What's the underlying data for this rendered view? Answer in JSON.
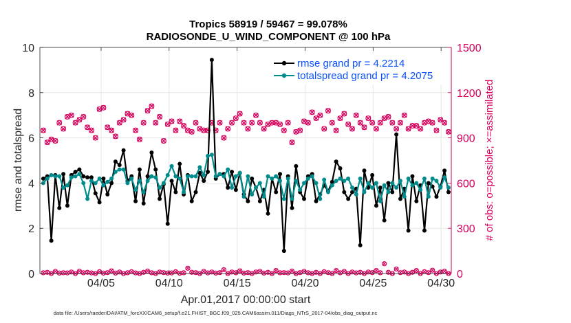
{
  "chart_data": {
    "type": "line",
    "title_line1": "Tropics 58919 / 59467 = 99.078%",
    "title_line2": "RADIOSONDE_U_WIND_COMPONENT @ 100 hPa",
    "xlabel": "Apr.01,2017 00:00:00 start",
    "ylabel_left": "rmse and totalspread",
    "ylabel_right": "# of obs: o=possible; ×=assimilated",
    "footer": "data file: /Users/raeder/DAI/ATM_forcXX/CAM6_setup/f.e21.FHIST_BGC.f09_025.CAM6assim.011/Diags_NTrS_2017-04/obs_diag_output.nc",
    "x_range": [
      0.5,
      30.75
    ],
    "x_ticks": [
      {
        "value": 5,
        "label": "04/05"
      },
      {
        "value": 10,
        "label": "04/10"
      },
      {
        "value": 15,
        "label": "04/15"
      },
      {
        "value": 20,
        "label": "04/20"
      },
      {
        "value": 25,
        "label": "04/25"
      },
      {
        "value": 30,
        "label": "04/30"
      }
    ],
    "ylim_left": [
      0,
      10
    ],
    "yticks_left": [
      "0",
      "2",
      "4",
      "6",
      "8",
      "10"
    ],
    "ylim_right": [
      0,
      1500
    ],
    "yticks_right": [
      "0",
      "300",
      "600",
      "900",
      "1200",
      "1500"
    ],
    "colors": {
      "rmse": "#000000",
      "spread": "#008c8c",
      "obs": "#d6005c",
      "legend_text": "#0a52ff"
    },
    "series": [
      {
        "name": "rmse grand pr = 4.2214",
        "axis": "left",
        "values": [
          4.2,
          4.3,
          1.45,
          4.35,
          2.9,
          4.4,
          3.0,
          4.35,
          4.5,
          4.6,
          4.3,
          4.25,
          4.25,
          3.55,
          3.15,
          4.2,
          3.5,
          4.0,
          4.95,
          4.8,
          5.45,
          4.1,
          4.3,
          3.2,
          4.6,
          3.1,
          4.3,
          5.35,
          4.6,
          3.3,
          3.95,
          2.2,
          4.1,
          3.6,
          4.85,
          3.5,
          4.35,
          3.2,
          3.6,
          4.45,
          4.1,
          4.5,
          9.45,
          4.2,
          4.4,
          4.4,
          3.8,
          4.5,
          3.7,
          4.45,
          3.5,
          3.2,
          4.2,
          3.8,
          3.2,
          3.7,
          2.65,
          4.2,
          3.6,
          4.4,
          1.0,
          4.3,
          2.9,
          4.75,
          3.6,
          3.3,
          4.3,
          4.4,
          3.2,
          3.5,
          3.9,
          3.65,
          4.05,
          4.95,
          4.65,
          3.6,
          3.3,
          3.6,
          3.75,
          1.25,
          4.55,
          3.8,
          4.35,
          3.0,
          3.8,
          2.35,
          4.0,
          3.6,
          6.15,
          3.3,
          3.75,
          1.9,
          4.3,
          3.2,
          3.9,
          1.9,
          4.0,
          3.85,
          3.4,
          3.85,
          4.55,
          3.6
        ]
      },
      {
        "name": "totalspread grand pr = 4.2075",
        "axis": "left",
        "values": [
          4.0,
          4.2,
          4.35,
          4.3,
          4.3,
          3.8,
          3.9,
          4.25,
          4.3,
          4.4,
          4.0,
          3.3,
          4.1,
          4.0,
          4.2,
          3.9,
          4.05,
          4.2,
          4.5,
          4.6,
          4.6,
          4.0,
          4.2,
          3.7,
          4.1,
          3.6,
          4.1,
          4.3,
          4.25,
          3.8,
          4.0,
          4.35,
          4.75,
          4.3,
          4.2,
          3.6,
          4.3,
          4.3,
          4.3,
          4.7,
          4.35,
          5.2,
          5.25,
          4.3,
          4.4,
          4.3,
          4.6,
          3.8,
          4.3,
          4.45,
          3.4,
          4.3,
          3.5,
          3.8,
          4.0,
          3.4,
          4.3,
          4.2,
          4.3,
          4.1,
          3.3,
          4.2,
          3.3,
          4.1,
          3.7,
          4.0,
          4.2,
          4.3,
          4.0,
          3.3,
          4.15,
          3.6,
          3.9,
          4.1,
          4.2,
          4.1,
          4.2,
          3.8,
          3.5,
          4.2,
          3.6,
          4.0,
          3.8,
          4.0,
          3.2,
          3.9,
          3.6,
          4.0,
          3.8,
          4.1,
          3.4,
          4.2,
          3.9,
          4.0,
          3.7,
          4.2,
          3.4,
          4.2,
          4.1,
          3.8,
          4.25,
          3.8
        ]
      },
      {
        "name": "obs possible",
        "axis": "right",
        "values": [
          950,
          870,
          890,
          880,
          1000,
          960,
          1040,
          1050,
          1000,
          1020,
          1040,
          970,
          950,
          900,
          1090,
          1100,
          970,
          950,
          910,
          1000,
          1020,
          1060,
          1050,
          950,
          890,
          1000,
          1080,
          1110,
          1000,
          1040,
          880,
          990,
          1010,
          950,
          1010,
          980,
          950,
          940,
          1000,
          960,
          950,
          950,
          1000,
          950,
          1000,
          900,
          960,
          1000,
          1030,
          1060,
          1000,
          960,
          1000,
          1050,
          1000,
          960,
          990,
          1000,
          1000,
          990,
          950,
          1000,
          870,
          940,
          950,
          1010,
          1000,
          1070,
          1030,
          1050,
          960,
          1080,
          1000,
          950,
          1030,
          1060,
          990,
          960,
          1050,
          1000,
          970,
          1030,
          1000,
          960,
          1000,
          1030,
          1040,
          1000,
          960,
          1000,
          1050,
          960,
          980,
          980,
          960,
          1000,
          1010,
          1000,
          950,
          1020,
          1000,
          940
        ]
      },
      {
        "name": "obs assimilated",
        "axis": "right",
        "values": [
          950,
          870,
          890,
          880,
          1000,
          960,
          1040,
          1050,
          1000,
          1020,
          1040,
          970,
          950,
          900,
          1090,
          1100,
          970,
          950,
          910,
          1000,
          1020,
          1060,
          1050,
          950,
          890,
          1000,
          1080,
          1110,
          1000,
          1040,
          880,
          990,
          1010,
          950,
          1010,
          980,
          950,
          940,
          1000,
          960,
          950,
          950,
          1000,
          950,
          1000,
          900,
          960,
          1000,
          1030,
          1060,
          1000,
          960,
          1000,
          1050,
          1000,
          960,
          990,
          1000,
          1000,
          990,
          950,
          1000,
          870,
          940,
          950,
          1010,
          1000,
          1070,
          1030,
          1050,
          960,
          1080,
          1000,
          950,
          1030,
          1060,
          990,
          960,
          1050,
          1000,
          970,
          1030,
          1000,
          960,
          1000,
          1030,
          1040,
          1000,
          960,
          1000,
          1050,
          960,
          980,
          980,
          960,
          1000,
          1010,
          1000,
          950,
          1020,
          1000,
          940
        ]
      },
      {
        "name": "obs bottom row",
        "axis": "right",
        "values": [
          5,
          8,
          0,
          14,
          3,
          5,
          4,
          10,
          0,
          15,
          5,
          8,
          4,
          0,
          12,
          3,
          6,
          18,
          3,
          10,
          0,
          5,
          12,
          4,
          0,
          8,
          16,
          5,
          0,
          10,
          6,
          3,
          4,
          12,
          2,
          5,
          35,
          8,
          6,
          0,
          14,
          4,
          10,
          3,
          6,
          25,
          0,
          10,
          5,
          18,
          3,
          6,
          0,
          10,
          14,
          3,
          8,
          0,
          20,
          5,
          6,
          4,
          16,
          0,
          6,
          14,
          5,
          0,
          8,
          0,
          12,
          6,
          0,
          20,
          5,
          14,
          0,
          10,
          4,
          8,
          0,
          10,
          6,
          20,
          5,
          65,
          8,
          0,
          30,
          6,
          10,
          0,
          8,
          20,
          0,
          12,
          6,
          22,
          0,
          10,
          15,
          0
        ]
      }
    ]
  }
}
